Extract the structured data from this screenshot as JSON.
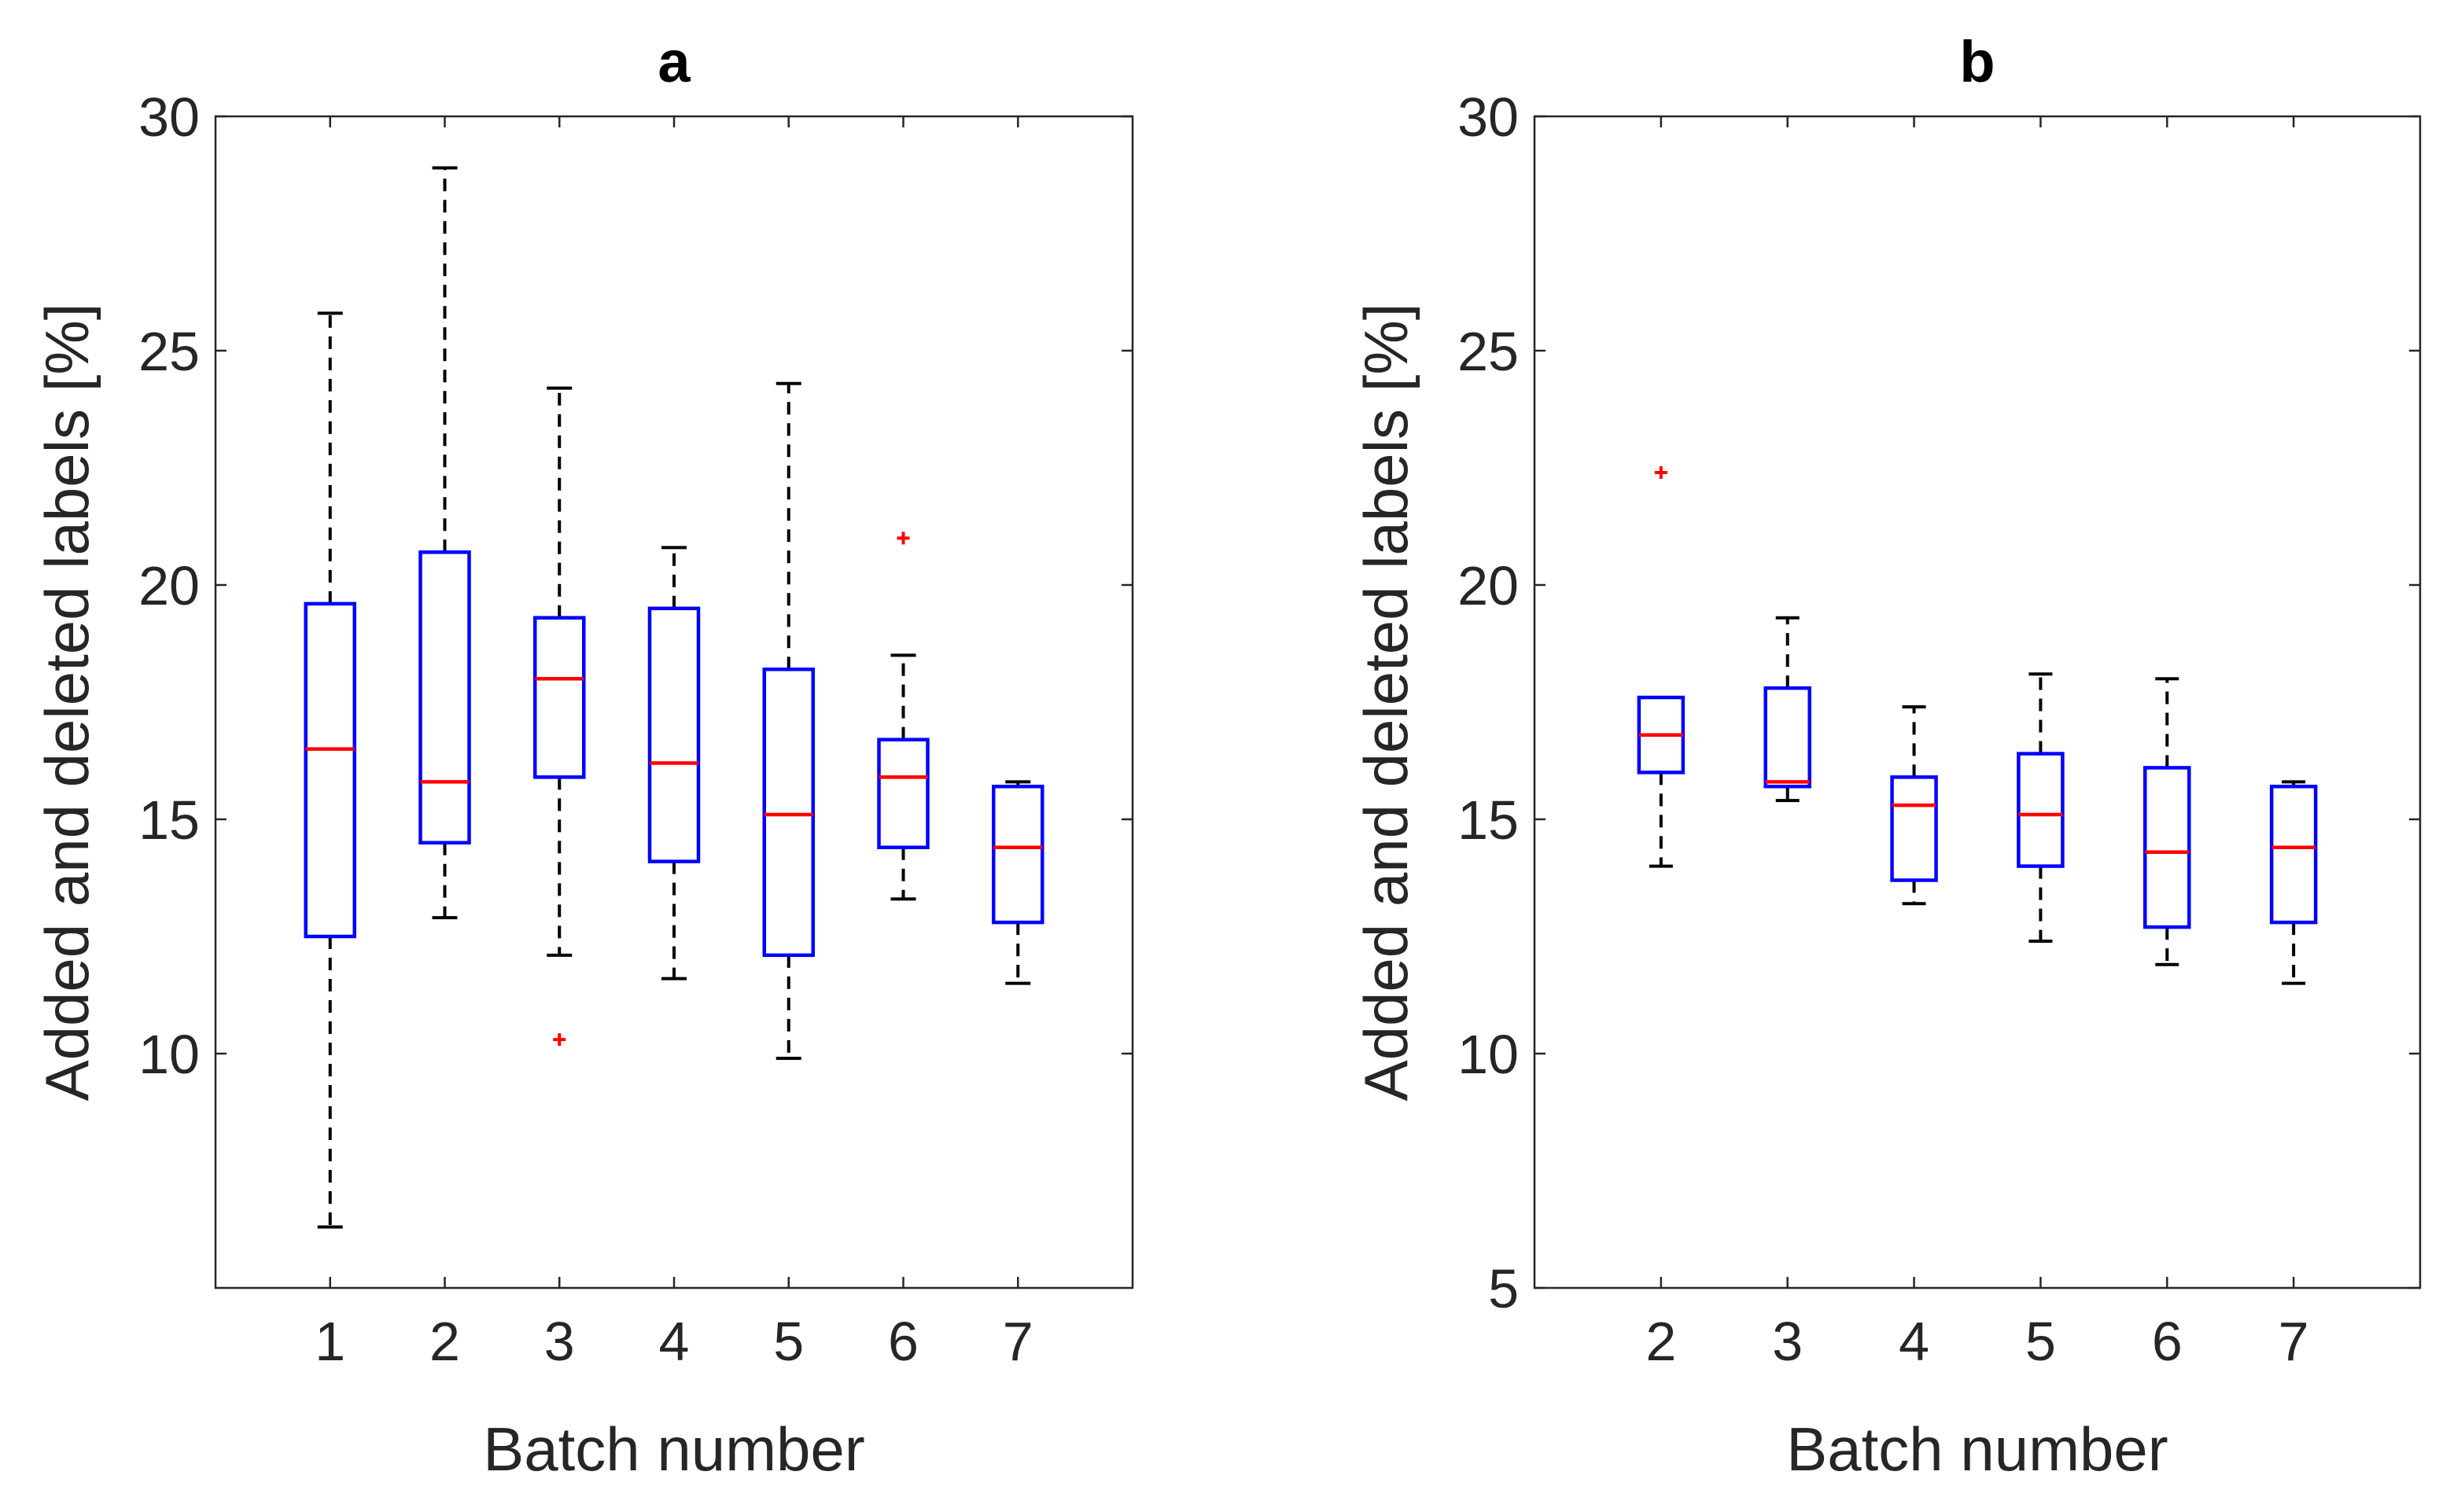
{
  "chart_data": [
    {
      "type": "box",
      "title": "a",
      "xlabel": "Batch number",
      "ylabel": "Added and deleted labels [%]",
      "categories": [
        "1",
        "2",
        "3",
        "4",
        "5",
        "6",
        "7"
      ],
      "ylim": [
        5,
        30
      ],
      "yticks": [
        "10",
        "15",
        "20",
        "25",
        "30"
      ],
      "grid": false,
      "box_color": "#0000ff",
      "median_color": "#ff0000",
      "whisker_color": "#000000",
      "outlier_color": "#ff0000",
      "boxes": [
        {
          "category": "1",
          "whisker_low": 6.3,
          "q1": 12.5,
          "median": 16.5,
          "q3": 19.6,
          "whisker_high": 25.8,
          "outliers": []
        },
        {
          "category": "2",
          "whisker_low": 12.9,
          "q1": 14.5,
          "median": 15.8,
          "q3": 20.7,
          "whisker_high": 28.9,
          "outliers": []
        },
        {
          "category": "3",
          "whisker_low": 12.1,
          "q1": 15.9,
          "median": 18.0,
          "q3": 19.3,
          "whisker_high": 24.2,
          "outliers": [
            10.3
          ]
        },
        {
          "category": "4",
          "whisker_low": 11.6,
          "q1": 14.1,
          "median": 16.2,
          "q3": 19.5,
          "whisker_high": 20.8,
          "outliers": []
        },
        {
          "category": "5",
          "whisker_low": 9.9,
          "q1": 12.1,
          "median": 15.1,
          "q3": 18.2,
          "whisker_high": 24.3,
          "outliers": []
        },
        {
          "category": "6",
          "whisker_low": 13.3,
          "q1": 14.4,
          "median": 15.9,
          "q3": 16.7,
          "whisker_high": 18.5,
          "outliers": [
            21.0
          ]
        },
        {
          "category": "7",
          "whisker_low": 11.5,
          "q1": 12.8,
          "median": 14.4,
          "q3": 15.7,
          "whisker_high": 15.8,
          "outliers": []
        }
      ]
    },
    {
      "type": "box",
      "title": "b",
      "xlabel": "Batch number",
      "ylabel": "Added and deleted labels [%]",
      "categories": [
        "2",
        "3",
        "4",
        "5",
        "6",
        "7"
      ],
      "ylim": [
        5,
        30
      ],
      "yticks": [
        "5",
        "10",
        "15",
        "20",
        "25",
        "30"
      ],
      "grid": false,
      "box_color": "#0000ff",
      "median_color": "#ff0000",
      "whisker_color": "#000000",
      "outlier_color": "#ff0000",
      "boxes": [
        {
          "category": "2",
          "whisker_low": 14.0,
          "q1": 16.0,
          "median": 16.8,
          "q3": 17.6,
          "whisker_high": 17.6,
          "outliers": [
            22.4
          ]
        },
        {
          "category": "3",
          "whisker_low": 15.4,
          "q1": 15.7,
          "median": 15.8,
          "q3": 17.8,
          "whisker_high": 19.3,
          "outliers": []
        },
        {
          "category": "4",
          "whisker_low": 13.2,
          "q1": 13.7,
          "median": 15.3,
          "q3": 15.9,
          "whisker_high": 17.4,
          "outliers": []
        },
        {
          "category": "5",
          "whisker_low": 12.4,
          "q1": 14.0,
          "median": 15.1,
          "q3": 16.4,
          "whisker_high": 18.1,
          "outliers": []
        },
        {
          "category": "6",
          "whisker_low": 11.9,
          "q1": 12.7,
          "median": 14.3,
          "q3": 16.1,
          "whisker_high": 18.0,
          "outliers": []
        },
        {
          "category": "7",
          "whisker_low": 11.5,
          "q1": 12.8,
          "median": 14.4,
          "q3": 15.7,
          "whisker_high": 15.8,
          "outliers": []
        }
      ]
    }
  ]
}
